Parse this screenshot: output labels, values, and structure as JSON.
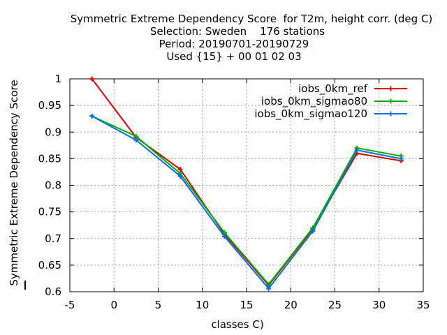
{
  "chart_data": {
    "type": "line",
    "title_lines": [
      "Symmetric Extreme Dependency Score  for T2m, height corr. (deg C)",
      "Selection: Sweden    176 stations",
      "Period: 20190701-20190729",
      "Used {15} + 00 01 02 03"
    ],
    "xlabel": "classes C)",
    "ylabel": "Symmetric Extreme Dependency Score",
    "xlim": [
      -5,
      35
    ],
    "ylim": [
      0.6,
      1.0
    ],
    "x_ticks": [
      -5,
      0,
      5,
      10,
      15,
      20,
      25,
      30,
      35
    ],
    "x_tick_labels": [
      "-5",
      "0",
      "5",
      "10",
      "15",
      "20",
      "25",
      "30",
      "35"
    ],
    "y_ticks": [
      0.6,
      0.65,
      0.7,
      0.75,
      0.8,
      0.85,
      0.9,
      0.95,
      1.0
    ],
    "y_tick_labels": [
      "0.6",
      "0.65",
      "0.7",
      "0.75",
      "0.8",
      "0.85",
      "0.9",
      "0.95",
      "1"
    ],
    "grid": true,
    "legend_position": "top-right",
    "x": [
      -2.5,
      2.5,
      7.5,
      12.5,
      17.5,
      22.5,
      27.5,
      32.5
    ],
    "series": [
      {
        "name": "iobs_0km_ref",
        "color": "#e00000",
        "values": [
          1.0,
          0.89,
          0.83,
          0.708,
          0.612,
          0.718,
          0.86,
          0.846
        ]
      },
      {
        "name": "iobs_0km_sigmao80",
        "color": "#00b000",
        "values": [
          0.93,
          0.892,
          0.822,
          0.711,
          0.614,
          0.72,
          0.87,
          0.855
        ]
      },
      {
        "name": "iobs_0km_sigmao120",
        "color": "#0070e0",
        "values": [
          0.93,
          0.885,
          0.817,
          0.704,
          0.606,
          0.714,
          0.866,
          0.85
        ]
      }
    ]
  }
}
